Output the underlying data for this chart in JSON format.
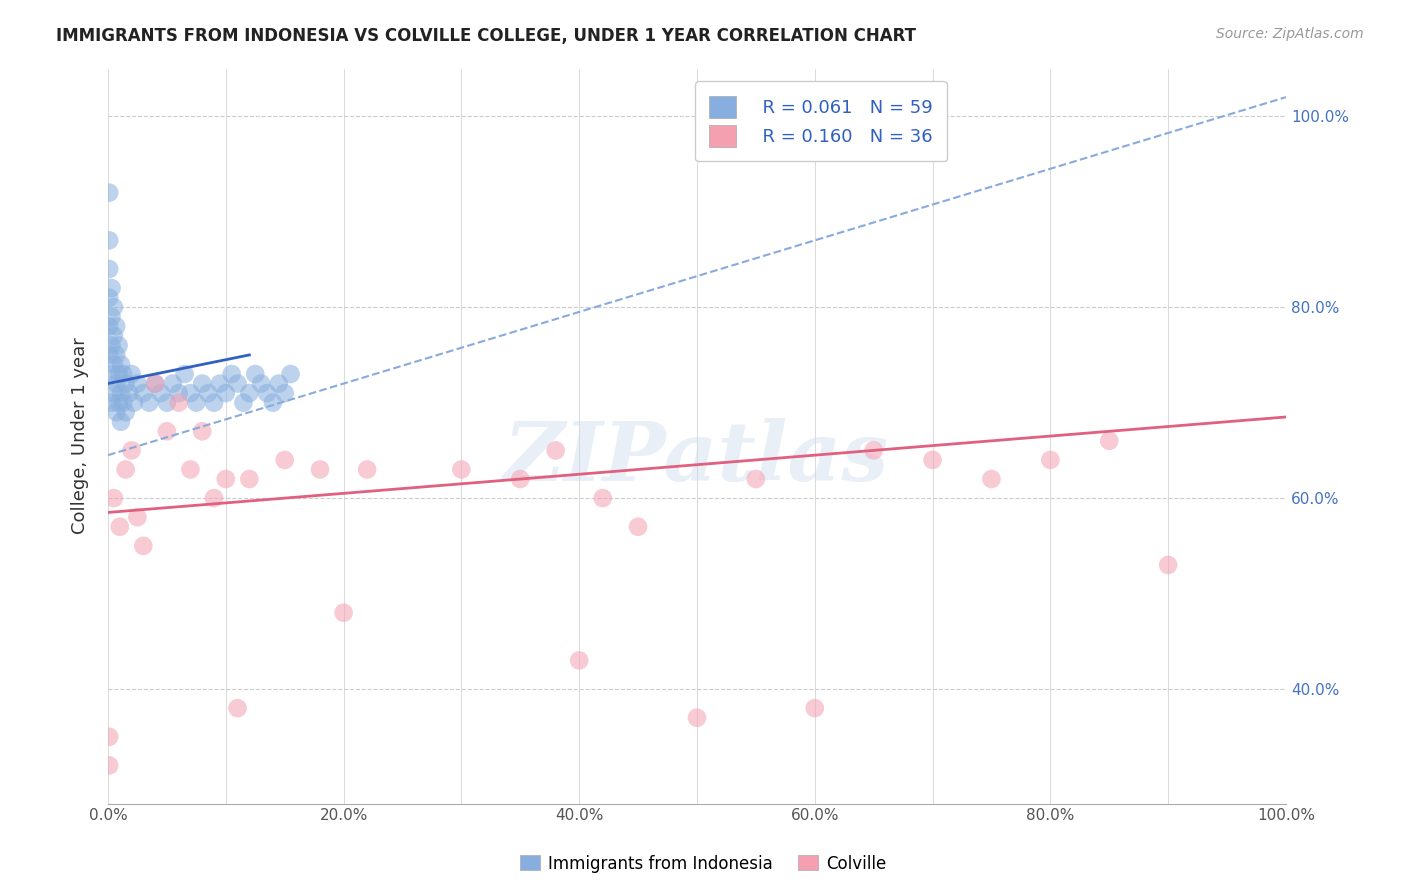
{
  "title": "IMMIGRANTS FROM INDONESIA VS COLVILLE COLLEGE, UNDER 1 YEAR CORRELATION CHART",
  "title_source": "Source: ZipAtlas.com",
  "ylabel": "College, Under 1 year",
  "xlabel": "",
  "xlim": [
    0.0,
    1.0
  ],
  "ylim": [
    0.28,
    1.05
  ],
  "xtick_labels": [
    "0.0%",
    "",
    "20.0%",
    "",
    "40.0%",
    "",
    "60.0%",
    "",
    "80.0%",
    "",
    "100.0%"
  ],
  "xtick_vals": [
    0.0,
    0.1,
    0.2,
    0.3,
    0.4,
    0.5,
    0.6,
    0.7,
    0.8,
    0.9,
    1.0
  ],
  "ytick_labels": [
    "40.0%",
    "60.0%",
    "80.0%",
    "100.0%"
  ],
  "ytick_vals": [
    0.4,
    0.6,
    0.8,
    1.0
  ],
  "blue_color": "#87AEDE",
  "pink_color": "#F4A0B0",
  "blue_line_color": "#3060C0",
  "pink_line_color": "#E06080",
  "dashed_line_color": "#88AADD",
  "legend_R1": "R = 0.061",
  "legend_N1": "N = 59",
  "legend_R2": "R = 0.160",
  "legend_N2": "N = 36",
  "watermark": "ZIPatlas",
  "legend_color": "#3060C0",
  "blue_scatter_x": [
    0.001,
    0.001,
    0.001,
    0.001,
    0.001,
    0.001,
    0.003,
    0.003,
    0.003,
    0.003,
    0.003,
    0.005,
    0.005,
    0.005,
    0.005,
    0.007,
    0.007,
    0.007,
    0.007,
    0.009,
    0.009,
    0.009,
    0.011,
    0.011,
    0.011,
    0.013,
    0.013,
    0.015,
    0.015,
    0.018,
    0.02,
    0.022,
    0.025,
    0.03,
    0.035,
    0.04,
    0.045,
    0.05,
    0.055,
    0.06,
    0.065,
    0.07,
    0.075,
    0.08,
    0.085,
    0.09,
    0.095,
    0.1,
    0.105,
    0.11,
    0.115,
    0.12,
    0.125,
    0.13,
    0.135,
    0.14,
    0.145,
    0.15,
    0.155
  ],
  "blue_scatter_y": [
    0.92,
    0.87,
    0.84,
    0.81,
    0.78,
    0.75,
    0.82,
    0.79,
    0.76,
    0.73,
    0.7,
    0.8,
    0.77,
    0.74,
    0.71,
    0.78,
    0.75,
    0.72,
    0.69,
    0.76,
    0.73,
    0.7,
    0.74,
    0.71,
    0.68,
    0.73,
    0.7,
    0.72,
    0.69,
    0.71,
    0.73,
    0.7,
    0.72,
    0.71,
    0.7,
    0.72,
    0.71,
    0.7,
    0.72,
    0.71,
    0.73,
    0.71,
    0.7,
    0.72,
    0.71,
    0.7,
    0.72,
    0.71,
    0.73,
    0.72,
    0.7,
    0.71,
    0.73,
    0.72,
    0.71,
    0.7,
    0.72,
    0.71,
    0.73
  ],
  "pink_scatter_x": [
    0.001,
    0.001,
    0.005,
    0.01,
    0.015,
    0.02,
    0.025,
    0.03,
    0.04,
    0.05,
    0.06,
    0.07,
    0.08,
    0.09,
    0.1,
    0.11,
    0.12,
    0.15,
    0.18,
    0.2,
    0.22,
    0.3,
    0.35,
    0.38,
    0.4,
    0.42,
    0.45,
    0.5,
    0.55,
    0.6,
    0.65,
    0.7,
    0.75,
    0.8,
    0.85,
    0.9
  ],
  "pink_scatter_y": [
    0.35,
    0.32,
    0.6,
    0.57,
    0.63,
    0.65,
    0.58,
    0.55,
    0.72,
    0.67,
    0.7,
    0.63,
    0.67,
    0.6,
    0.62,
    0.38,
    0.62,
    0.64,
    0.63,
    0.48,
    0.63,
    0.63,
    0.62,
    0.65,
    0.43,
    0.6,
    0.57,
    0.37,
    0.62,
    0.38,
    0.65,
    0.64,
    0.62,
    0.64,
    0.66,
    0.53
  ],
  "blue_trend_x": [
    0.0,
    0.12
  ],
  "blue_trend_y": [
    0.72,
    0.75
  ],
  "pink_trend_x": [
    0.0,
    1.0
  ],
  "pink_trend_y": [
    0.585,
    0.685
  ],
  "dashed_trend_x": [
    0.0,
    1.0
  ],
  "dashed_trend_y": [
    0.645,
    1.02
  ]
}
